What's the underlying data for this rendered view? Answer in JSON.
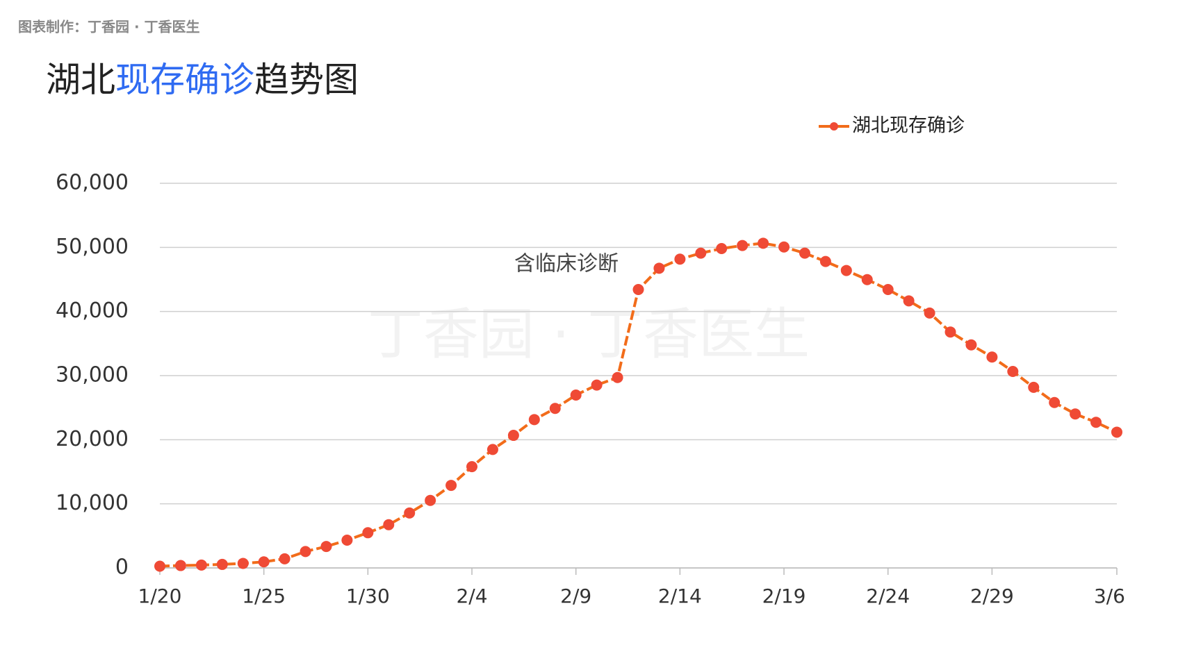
{
  "chart_data": {
    "type": "line",
    "source": "图表制作：丁香园 · 丁香医生",
    "title_parts": [
      "湖北",
      "现存确诊",
      "趋势图"
    ],
    "title_colors": [
      "#222222",
      "#2f6bf2",
      "#222222"
    ],
    "watermark": "丁香园 · 丁香医生",
    "annotation": "含临床诊断",
    "categories": [
      "1/20",
      null,
      null,
      null,
      null,
      "1/25",
      null,
      null,
      null,
      null,
      "1/30",
      null,
      null,
      null,
      null,
      "2/4",
      null,
      null,
      null,
      null,
      "2/9",
      null,
      null,
      null,
      null,
      "2/14",
      null,
      null,
      null,
      null,
      "2/19",
      null,
      null,
      null,
      null,
      "2/24",
      null,
      null,
      null,
      null,
      "2/29",
      null,
      null,
      null,
      null,
      null,
      "3/6"
    ],
    "series": [
      {
        "name": "湖北现存确诊",
        "color": "#f26c1a",
        "marker_color": "#ef4a35",
        "values": [
          270,
          375,
          444,
          549,
          710,
          950,
          1420,
          2560,
          3350,
          4330,
          5490,
          6740,
          8570,
          10530,
          12880,
          15800,
          18480,
          20680,
          23140,
          24880,
          26970,
          28530,
          29700,
          43430,
          46750,
          48170,
          49100,
          49820,
          50300,
          50650,
          50060,
          49100,
          47800,
          46400,
          44970,
          43430,
          41660,
          39760,
          36800,
          34790,
          32900,
          30650,
          28170,
          25800,
          24020,
          22720,
          21180
        ]
      }
    ],
    "ylim": [
      0,
      60000
    ],
    "yticks": [
      0,
      {
        "value": 10000,
        "label": "10,000"
      },
      {
        "value": 20000,
        "label": "20,000"
      },
      {
        "value": 30000,
        "label": "30,000"
      },
      {
        "value": 40000,
        "label": "40,000"
      },
      {
        "value": 50000,
        "label": "50,000"
      },
      {
        "value": 60000,
        "label": "60,000"
      }
    ],
    "grid": true,
    "legend": "top-right"
  }
}
